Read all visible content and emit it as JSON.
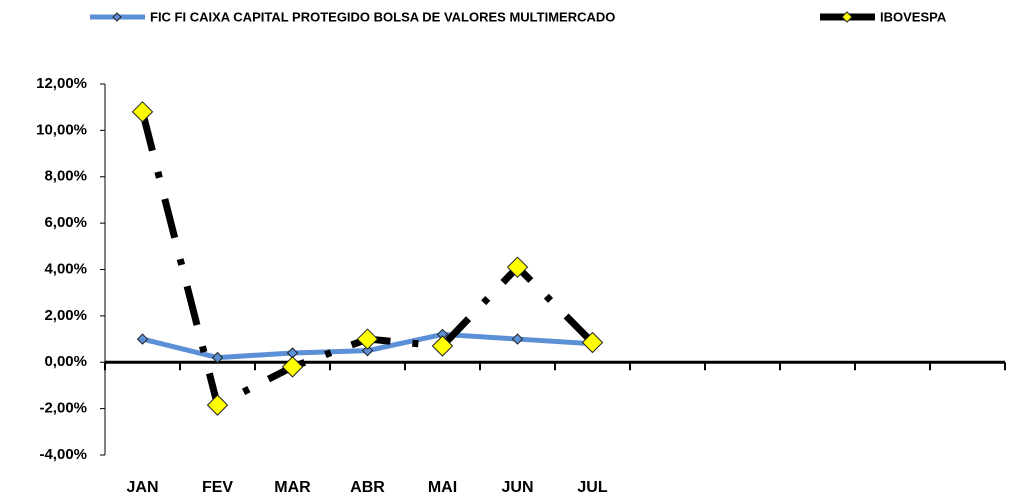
{
  "chart_data": {
    "type": "line",
    "categories": [
      "JAN",
      "FEV",
      "MAR",
      "ABR",
      "MAI",
      "JUN",
      "JUL",
      null,
      null,
      null,
      null,
      null
    ],
    "series": [
      {
        "name": "FIC FI CAIXA CAPITAL PROTEGIDO BOLSA DE VALORES MULTIMERCADO",
        "color": "#5b8fd6",
        "marker_color": "#5b8fd6",
        "line_style": "solid",
        "values": [
          1.0,
          0.2,
          0.4,
          0.5,
          1.2,
          1.0,
          0.8,
          null,
          null,
          null,
          null,
          null
        ]
      },
      {
        "name": "IBOVESPA",
        "color": "#000000",
        "marker_color": "#ffff00",
        "line_style": "dash-dot",
        "values": [
          10.8,
          -1.85,
          -0.2,
          1.0,
          0.7,
          4.1,
          0.85,
          null,
          null,
          null,
          null,
          null
        ]
      }
    ],
    "ylim": [
      -4,
      12
    ],
    "yticks": [
      {
        "value": -4,
        "label": "-4,00%"
      },
      {
        "value": -2,
        "label": "-2,00%"
      },
      {
        "value": 0,
        "label": "0,00%"
      },
      {
        "value": 2,
        "label": "2,00%"
      },
      {
        "value": 4,
        "label": "4,00%"
      },
      {
        "value": 6,
        "label": "6,00%"
      },
      {
        "value": 8,
        "label": "8,00%"
      },
      {
        "value": 10,
        "label": "10,00%"
      },
      {
        "value": 12,
        "label": "12,00%"
      }
    ],
    "legend": "top",
    "grid": false
  }
}
